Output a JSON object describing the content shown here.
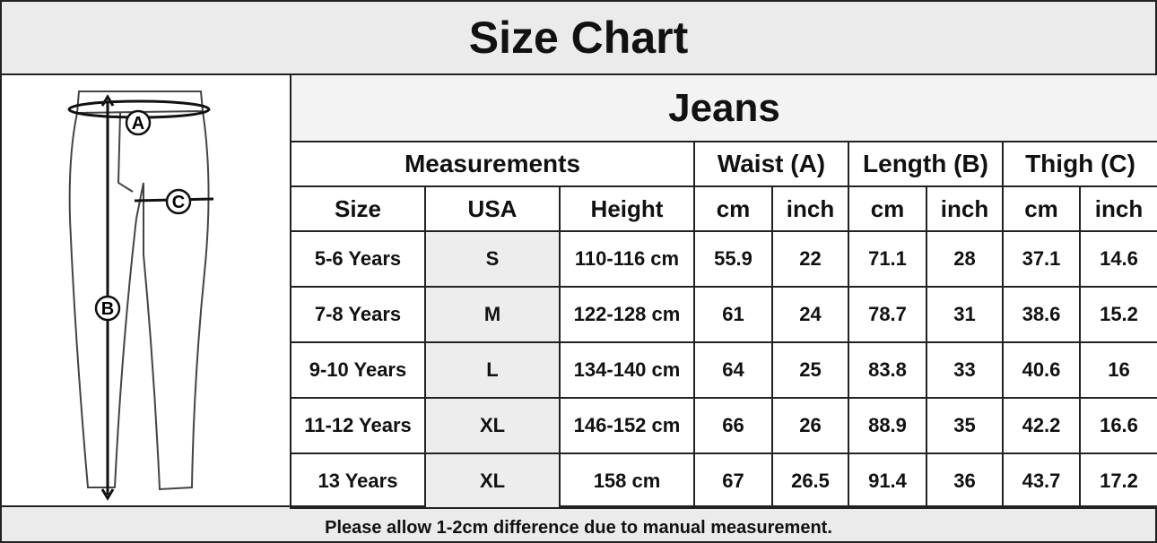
{
  "header": {
    "title": "Size Chart"
  },
  "diagram": {
    "labels": [
      "A",
      "B",
      "C"
    ]
  },
  "table": {
    "title": "Jeans",
    "groups": [
      "Measurements",
      "Waist (A)",
      "Length (B)",
      "Thigh (C)"
    ],
    "columns": [
      "Size",
      "USA",
      "Height",
      "cm",
      "inch",
      "cm",
      "inch",
      "cm",
      "inch"
    ],
    "rows": [
      [
        "5-6 Years",
        "S",
        "110-116 cm",
        55.9,
        22,
        71.1,
        28,
        37.1,
        14.6
      ],
      [
        "7-8 Years",
        "M",
        "122-128 cm",
        61,
        24,
        78.7,
        31,
        38.6,
        15.2
      ],
      [
        "9-10 Years",
        "L",
        "134-140 cm",
        64,
        25,
        83.8,
        33,
        40.6,
        16
      ],
      [
        "11-12 Years",
        "XL",
        "146-152 cm",
        66,
        26,
        88.9,
        35,
        42.2,
        16.6
      ],
      [
        "13 Years",
        "XL",
        "158 cm",
        67,
        26.5,
        91.4,
        36,
        43.7,
        17.2
      ]
    ]
  },
  "footer": {
    "note": "Please allow 1-2cm difference due to manual measurement."
  }
}
